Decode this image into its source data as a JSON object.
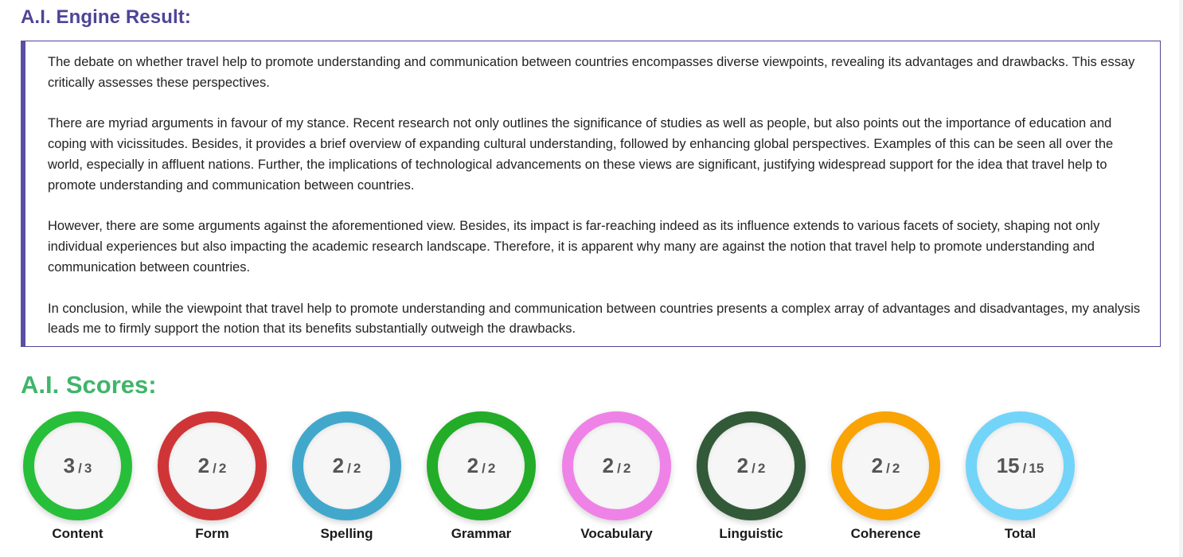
{
  "result": {
    "heading": "A.I. Engine Result:",
    "paragraphs": [
      "The debate on whether travel help to promote understanding and communication between countries encompasses diverse viewpoints, revealing its advantages and drawbacks. This essay critically assesses these perspectives.",
      "There are myriad arguments in favour of my stance. Recent research not only outlines the significance of studies as well as people, but also points out the importance of education and coping with vicissitudes. Besides, it provides a brief overview of expanding cultural understanding, followed by enhancing global perspectives. Examples of this can be seen all over the world, especially in affluent nations. Further, the implications of technological advancements on these views are significant, justifying widespread support for the idea that travel help to promote understanding and communication between countries.",
      "However, there are some arguments against the aforementioned view. Besides, its impact is far-reaching indeed as its influence extends to various facets of society, shaping not only individual experiences but also impacting the academic research landscape. Therefore, it is apparent why many are against the notion that travel help to promote understanding and communication between countries.",
      "In conclusion, while the viewpoint that travel help to promote understanding and communication between countries presents a complex array of advantages and disadvantages, my analysis leads me to firmly support the notion that its benefits substantially outweigh the drawbacks."
    ]
  },
  "scores": {
    "heading": "A.I. Scores:",
    "separator": "/",
    "items": [
      {
        "label": "Content",
        "score": "3",
        "max": "3",
        "color": "#27be3a"
      },
      {
        "label": "Form",
        "score": "2",
        "max": "2",
        "color": "#cf3537"
      },
      {
        "label": "Spelling",
        "score": "2",
        "max": "2",
        "color": "#41a8cc"
      },
      {
        "label": "Grammar",
        "score": "2",
        "max": "2",
        "color": "#22ac27"
      },
      {
        "label": "Vocabulary",
        "score": "2",
        "max": "2",
        "color": "#ee82e6"
      },
      {
        "label": "Linguistic",
        "score": "2",
        "max": "2",
        "color": "#335a38"
      },
      {
        "label": "Coherence",
        "score": "2",
        "max": "2",
        "color": "#f9a304"
      },
      {
        "label": "Total",
        "score": "15",
        "max": "15",
        "color": "#72d4f8"
      }
    ]
  }
}
